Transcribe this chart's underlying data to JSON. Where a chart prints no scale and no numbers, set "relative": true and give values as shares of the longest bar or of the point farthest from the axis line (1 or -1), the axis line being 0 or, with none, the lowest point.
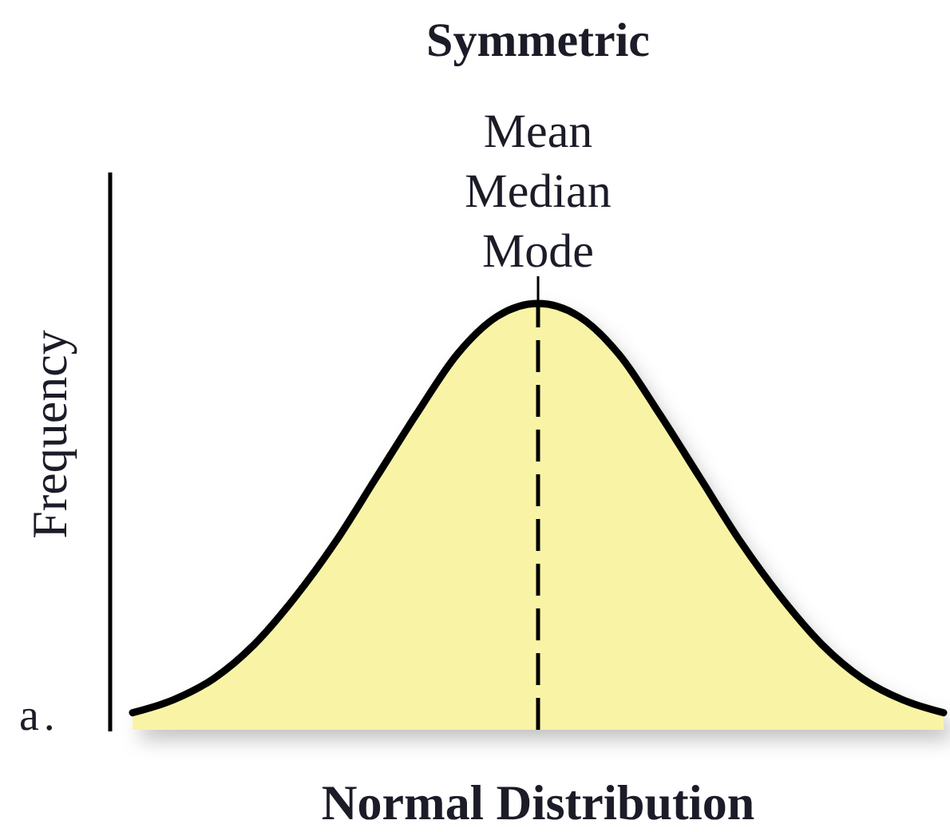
{
  "chart_data": {
    "type": "area",
    "title": "Symmetric",
    "xlabel": "Normal Distribution",
    "ylabel": "Frequency",
    "relative": true,
    "categories": [
      null,
      null,
      null,
      null,
      null,
      null,
      null,
      null,
      null,
      null,
      null,
      null,
      null,
      null,
      null,
      null,
      null,
      null,
      null,
      null,
      null
    ],
    "values": [
      0.04,
      0.07,
      0.12,
      0.2,
      0.31,
      0.44,
      0.59,
      0.74,
      0.88,
      0.97,
      1.0,
      0.97,
      0.88,
      0.74,
      0.59,
      0.44,
      0.31,
      0.2,
      0.12,
      0.07,
      0.04
    ],
    "color": "#f9f4a5",
    "annotations": [
      {
        "text": "Mean Median Mode",
        "y": 1.0
      },
      "a."
    ]
  }
}
